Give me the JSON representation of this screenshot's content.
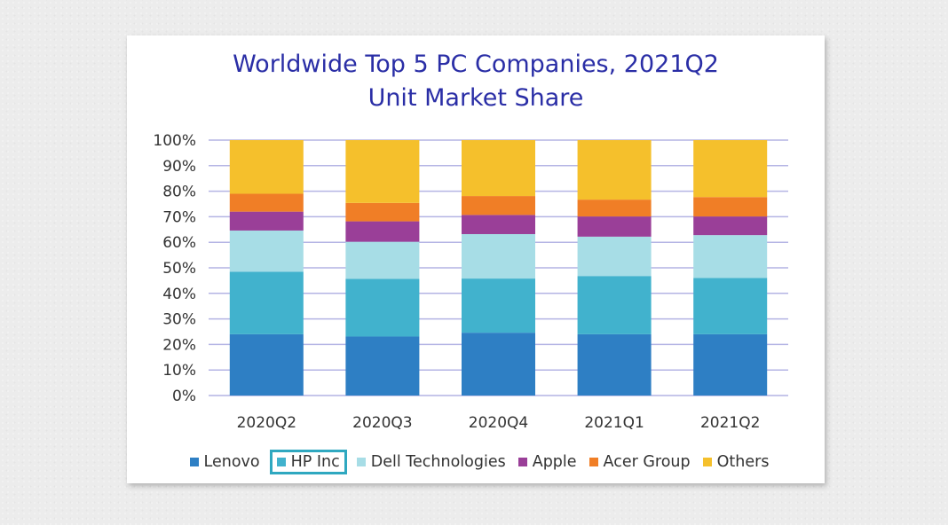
{
  "chart_data": {
    "type": "bar",
    "stacked": true,
    "title": "Worldwide Top 5 PC Companies, 2021Q2",
    "subtitle": "Unit Market Share",
    "categories": [
      "2020Q2",
      "2020Q3",
      "2020Q4",
      "2021Q1",
      "2021Q2"
    ],
    "ylim": [
      0,
      100
    ],
    "yticks": [
      "0%",
      "10%",
      "20%",
      "30%",
      "40%",
      "50%",
      "60%",
      "70%",
      "80%",
      "90%",
      "100%"
    ],
    "grid": true,
    "legend_position": "bottom",
    "highlighted_series": "HP Inc",
    "series": [
      {
        "name": "Lenovo",
        "color": "#2e7fc4",
        "values": [
          24.0,
          23.1,
          24.6,
          24.0,
          24.0
        ]
      },
      {
        "name": "HP Inc",
        "color": "#41b2cd",
        "values": [
          24.5,
          22.6,
          21.2,
          22.8,
          22.0
        ]
      },
      {
        "name": "Dell Technologies",
        "color": "#a7dde6",
        "values": [
          16.1,
          14.5,
          17.4,
          15.4,
          16.8
        ]
      },
      {
        "name": "Apple",
        "color": "#9a3f98",
        "values": [
          7.4,
          8.0,
          7.5,
          7.9,
          7.3
        ]
      },
      {
        "name": "Acer Group",
        "color": "#f07e26",
        "values": [
          7.0,
          7.2,
          7.4,
          6.6,
          7.6
        ]
      },
      {
        "name": "Others",
        "color": "#f5c02c",
        "values": [
          21.0,
          24.6,
          21.9,
          23.3,
          22.3
        ]
      }
    ]
  }
}
